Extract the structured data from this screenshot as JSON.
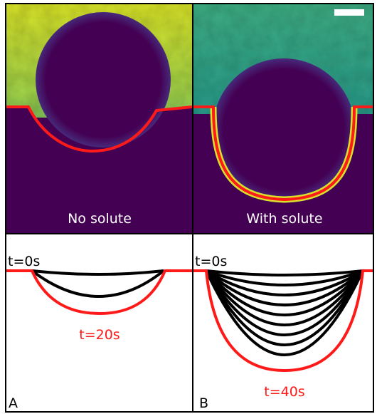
{
  "panels": [
    {
      "image_label": "No solute",
      "start_label": "t=0s",
      "end_label": "t=20s",
      "panel_letter": "A"
    },
    {
      "image_label": "With solute",
      "start_label": "t=0s",
      "end_label": "t=40s",
      "panel_letter": "B"
    }
  ]
}
